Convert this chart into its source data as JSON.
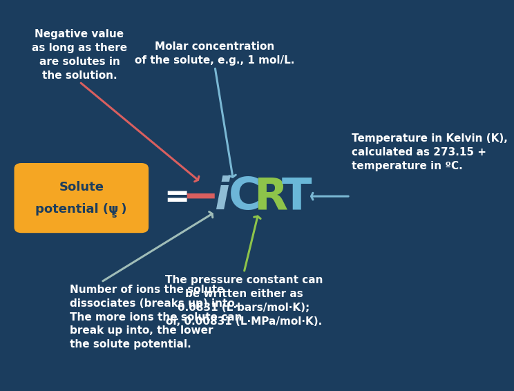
{
  "bg_color": "#1b3d5e",
  "fig_width": 7.0,
  "fig_height": 5.47,
  "box_facecolor": "#f5a623",
  "box_text_color": "#1b3d5e",
  "equals_color": "#ffffff",
  "formula_minus_color": "#d95f5f",
  "formula_i_color": "#8fbcd4",
  "formula_C_color": "#6db6d8",
  "formula_R_color": "#8ec44a",
  "formula_T_color": "#6ab8d8",
  "annotation_neg_text": "Negative value\nas long as there\nare solutes in\nthe solution.",
  "annotation_neg_color": "#ffffff",
  "annotation_neg_arrow_color": "#d95f5f",
  "annotation_molar_text": "Molar concentration\nof the solute, e.g., 1 mol/L.",
  "annotation_molar_color": "#ffffff",
  "annotation_molar_arrow_color": "#7ab8d4",
  "annotation_temp_text": "Temperature in Kelvin (K),\ncalculated as 273.15 +\ntemperature in ºC.",
  "annotation_temp_color": "#ffffff",
  "annotation_temp_arrow_color": "#7ab8d4",
  "annotation_ions_text": "Number of ions the solute\ndissociates (breaks up) into.\nThe more ions the solute can\nbreak up into, the lower\nthe solute potential.",
  "annotation_ions_color": "#ffffff",
  "annotation_ions_arrow_color": "#a0bdb8",
  "annotation_pressure_text": "The pressure constant can\nbe written either as\n0.0831 (L·bars/mol·K);\nor, 0.00831 (L·MPa/mol·K).",
  "annotation_pressure_color": "#ffffff",
  "annotation_pressure_arrow_color": "#8ec44a"
}
